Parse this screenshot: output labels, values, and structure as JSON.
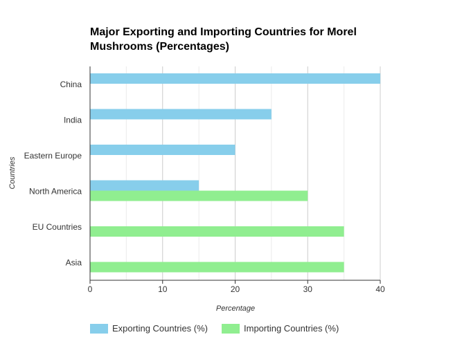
{
  "chart_data": {
    "type": "bar",
    "orientation": "horizontal",
    "title": "Major Exporting and Importing Countries for Morel Mushrooms (Percentages)",
    "xlabel": "Percentage",
    "ylabel": "Countries",
    "categories": [
      "China",
      "India",
      "Eastern Europe",
      "North America",
      "EU Countries",
      "Asia"
    ],
    "xlim": [
      0,
      40
    ],
    "xticks": [
      "0",
      "10",
      "20",
      "30",
      "40"
    ],
    "grid": true,
    "legend_position": "bottom-left",
    "series": [
      {
        "name": "Exporting Countries (%)",
        "color": "#87ceeb",
        "values": [
          40,
          25,
          20,
          15,
          null,
          null
        ]
      },
      {
        "name": "Importing Countries (%)",
        "color": "#90ee90",
        "values": [
          null,
          null,
          null,
          30,
          35,
          35
        ]
      }
    ]
  }
}
